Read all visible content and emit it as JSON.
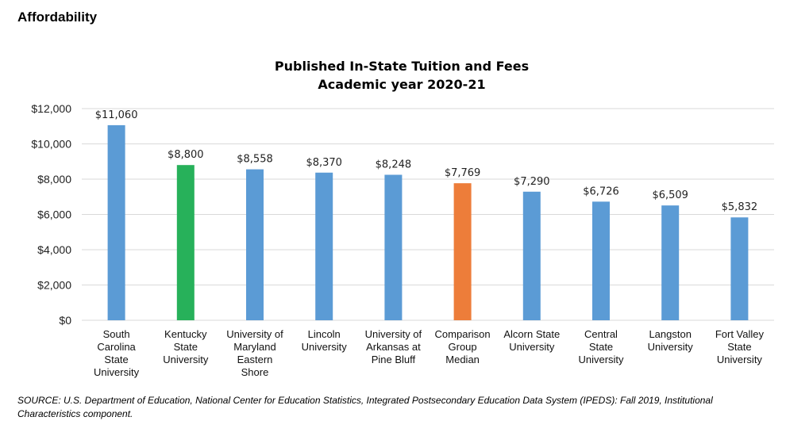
{
  "page": {
    "section_heading": "Affordability",
    "source_note": "SOURCE: U.S. Department of Education, National Center for Education Statistics, Integrated Postsecondary Education Data System (IPEDS): Fall 2019, Institutional Characteristics component."
  },
  "chart_data": {
    "type": "bar",
    "title": [
      "Published In-State Tuition and Fees",
      "Academic year 2020-21"
    ],
    "xlabel": "",
    "ylabel": "",
    "ylim": [
      0,
      12000
    ],
    "yticks": [
      0,
      2000,
      4000,
      6000,
      8000,
      10000,
      12000
    ],
    "ytick_labels": [
      "$0",
      "$2,000",
      "$4,000",
      "$6,000",
      "$8,000",
      "$10,000",
      "$12,000"
    ],
    "grid": true,
    "legend": "none",
    "categories": [
      [
        "South",
        "Carolina",
        "State",
        "University"
      ],
      [
        "Kentucky",
        "State",
        "University"
      ],
      [
        "University of",
        "Maryland",
        "Eastern",
        "Shore"
      ],
      [
        "Lincoln",
        "University"
      ],
      [
        "University of",
        "Arkansas at",
        "Pine Bluff"
      ],
      [
        "Comparison",
        "Group",
        "Median"
      ],
      [
        "Alcorn State",
        "University"
      ],
      [
        "Central",
        "State",
        "University"
      ],
      [
        "Langston",
        "University"
      ],
      [
        "Fort Valley",
        "State",
        "University"
      ]
    ],
    "values": [
      11060,
      8800,
      8558,
      8370,
      8248,
      7769,
      7290,
      6726,
      6509,
      5832
    ],
    "value_labels": [
      "$11,060",
      "$8,800",
      "$8,558",
      "$8,370",
      "$8,248",
      "$7,769",
      "$7,290",
      "$6,726",
      "$6,509",
      "$5,832"
    ],
    "bar_colors": [
      "#5b9bd5",
      "#27b15a",
      "#5b9bd5",
      "#5b9bd5",
      "#5b9bd5",
      "#ed7d3a",
      "#5b9bd5",
      "#5b9bd5",
      "#5b9bd5",
      "#5b9bd5"
    ],
    "grid_color": "#d9d9d9"
  }
}
